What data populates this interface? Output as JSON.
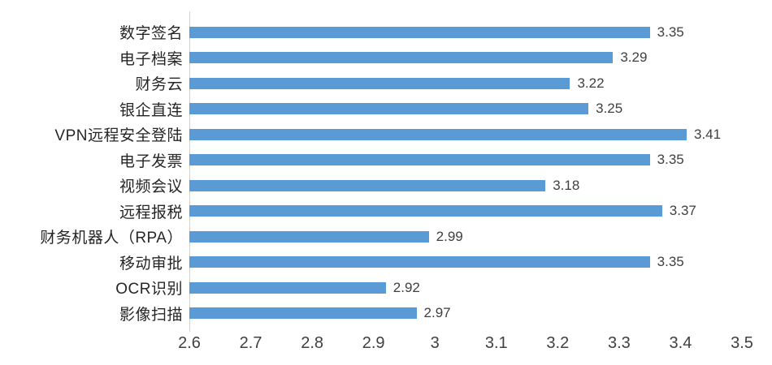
{
  "chart_data": {
    "type": "bar",
    "orientation": "horizontal",
    "title": "",
    "xlabel": "",
    "ylabel": "",
    "categories": [
      "数字签名",
      "电子档案",
      "财务云",
      "银企直连",
      "VPN远程安全登陆",
      "电子发票",
      "视频会议",
      "远程报税",
      "财务机器人（RPA）",
      "移动审批",
      "OCR识别",
      "影像扫描"
    ],
    "values": [
      3.35,
      3.29,
      3.22,
      3.25,
      3.41,
      3.35,
      3.18,
      3.37,
      2.99,
      3.35,
      2.92,
      2.97
    ],
    "value_labels": [
      "3.35",
      "3.29",
      "3.22",
      "3.25",
      "3.41",
      "3.35",
      "3.18",
      "3.37",
      "2.99",
      "3.35",
      "2.92",
      "2.97"
    ],
    "xlim": [
      2.6,
      3.5
    ],
    "x_tick_labels": [
      "2.6",
      "2.7",
      "2.8",
      "2.9",
      "3",
      "3.1",
      "3.2",
      "3.3",
      "3.4",
      "3.5"
    ],
    "x_tick_values": [
      2.6,
      2.7,
      2.8,
      2.9,
      3.0,
      3.1,
      3.2,
      3.3,
      3.4,
      3.5
    ],
    "grid": false,
    "legend_position": "none",
    "colors": {
      "bar": "#5B9BD5",
      "axis_line": "#d2d2d2",
      "category_text": "#262626",
      "value_text": "#404040",
      "tick_text": "#404040",
      "background": "#ffffff"
    }
  }
}
